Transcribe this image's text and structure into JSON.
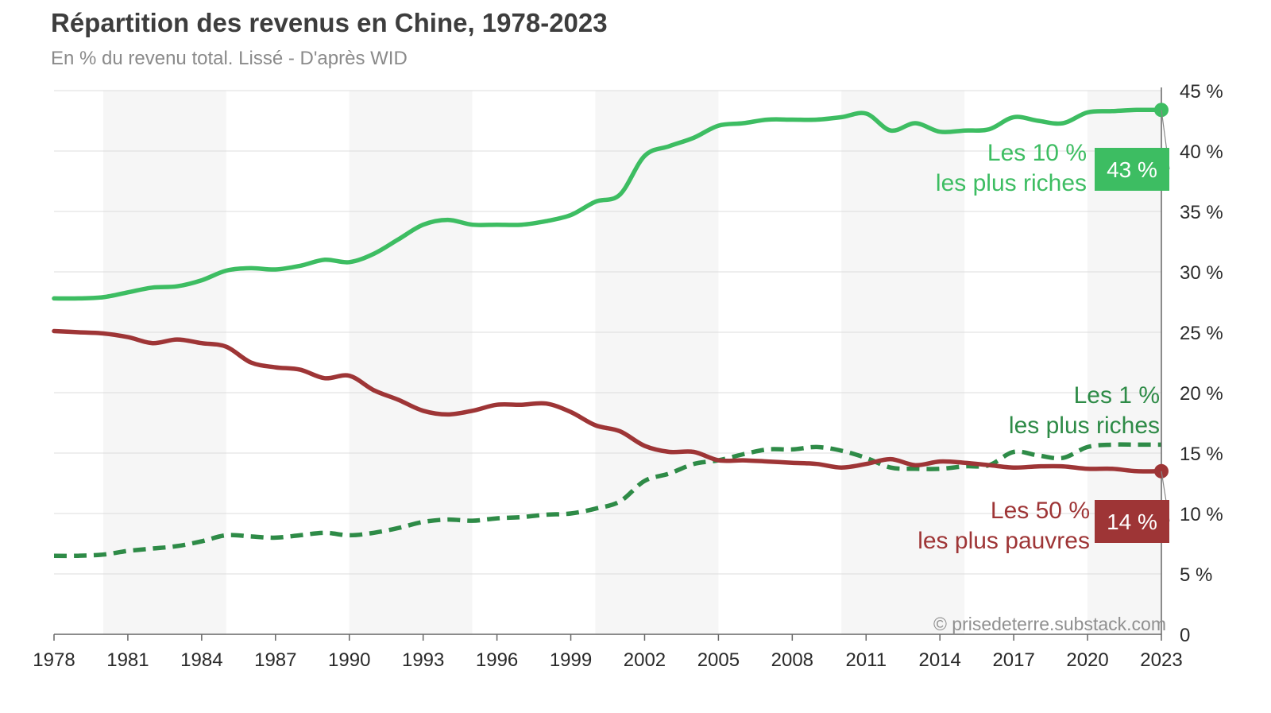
{
  "title": "Répartition des revenus en Chine, 1978-2023",
  "subtitle": "En % du revenu total. Lissé - D'après WID",
  "credit": "© prisedeterre.substack.com",
  "chart_data": {
    "type": "line",
    "title": "Répartition des revenus en Chine, 1978-2023",
    "subtitle": "En % du revenu total. Lissé - D'après WID",
    "xlabel": "",
    "ylabel": "",
    "xlim": [
      1978,
      2023
    ],
    "ylim": [
      0,
      45
    ],
    "y_axis_side": "right",
    "y_tick_values": [
      0,
      5,
      10,
      15,
      20,
      25,
      30,
      35,
      40,
      45
    ],
    "y_tick_labels": [
      "0",
      "5 %",
      "10 %",
      "15 %",
      "20 %",
      "25 %",
      "30 %",
      "35 %",
      "40 %",
      "45 %"
    ],
    "x_tick_labels": [
      "1978",
      "1981",
      "1984",
      "1987",
      "1990",
      "1993",
      "1996",
      "1999",
      "2002",
      "2005",
      "2008",
      "2011",
      "2014",
      "2017",
      "2020",
      "2023"
    ],
    "shaded_bands": [
      [
        1980,
        1985
      ],
      [
        1990,
        1995
      ],
      [
        2000,
        2005
      ],
      [
        2010,
        2015
      ],
      [
        2020,
        2023
      ]
    ],
    "x": [
      1978,
      1979,
      1980,
      1981,
      1982,
      1983,
      1984,
      1985,
      1986,
      1987,
      1988,
      1989,
      1990,
      1991,
      1992,
      1993,
      1994,
      1995,
      1996,
      1997,
      1998,
      1999,
      2000,
      2001,
      2002,
      2003,
      2004,
      2005,
      2006,
      2007,
      2008,
      2009,
      2010,
      2011,
      2012,
      2013,
      2014,
      2015,
      2016,
      2017,
      2018,
      2019,
      2020,
      2021,
      2022,
      2023
    ],
    "series": [
      {
        "name": "Les 10 % les plus riches",
        "label_line1": "Les 10 %",
        "label_line2": "les plus riches",
        "end_badge": "43 %",
        "color": "#3dbd62",
        "style": "solid",
        "values": [
          27.8,
          27.8,
          27.9,
          28.3,
          28.7,
          28.8,
          29.3,
          30.1,
          30.3,
          30.2,
          30.5,
          31.0,
          30.8,
          31.5,
          32.7,
          33.9,
          34.3,
          33.9,
          33.9,
          33.9,
          34.2,
          34.7,
          35.8,
          36.4,
          39.6,
          40.4,
          41.1,
          42.1,
          42.3,
          42.6,
          42.6,
          42.6,
          42.8,
          43.1,
          41.7,
          42.3,
          41.6,
          41.7,
          41.8,
          42.8,
          42.5,
          42.3,
          43.2,
          43.3,
          43.4,
          43.4
        ]
      },
      {
        "name": "Les 1 % les plus riches",
        "label_line1": "Les 1 %",
        "label_line2": "les plus riches",
        "color": "#2e8b47",
        "style": "dashed",
        "values": [
          6.5,
          6.5,
          6.6,
          6.9,
          7.1,
          7.3,
          7.7,
          8.2,
          8.1,
          8.0,
          8.2,
          8.4,
          8.2,
          8.4,
          8.8,
          9.3,
          9.5,
          9.4,
          9.6,
          9.7,
          9.9,
          10.0,
          10.4,
          11.0,
          12.7,
          13.3,
          14.1,
          14.4,
          14.9,
          15.3,
          15.3,
          15.5,
          15.2,
          14.6,
          13.8,
          13.7,
          13.7,
          13.9,
          14.0,
          15.1,
          14.8,
          14.6,
          15.5,
          15.7,
          15.7,
          15.7
        ]
      },
      {
        "name": "Les 50 % les plus pauvres",
        "label_line1": "Les 50 %",
        "label_line2": "les plus pauvres",
        "end_badge": "14 %",
        "color": "#9e3536",
        "style": "solid",
        "values": [
          25.1,
          25.0,
          24.9,
          24.6,
          24.1,
          24.4,
          24.1,
          23.8,
          22.5,
          22.1,
          21.9,
          21.2,
          21.4,
          20.2,
          19.4,
          18.5,
          18.2,
          18.5,
          19.0,
          19.0,
          19.1,
          18.4,
          17.3,
          16.8,
          15.6,
          15.1,
          15.1,
          14.4,
          14.4,
          14.3,
          14.2,
          14.1,
          13.8,
          14.1,
          14.5,
          14.0,
          14.3,
          14.2,
          14.0,
          13.8,
          13.9,
          13.9,
          13.7,
          13.7,
          13.5,
          13.5
        ]
      }
    ]
  }
}
